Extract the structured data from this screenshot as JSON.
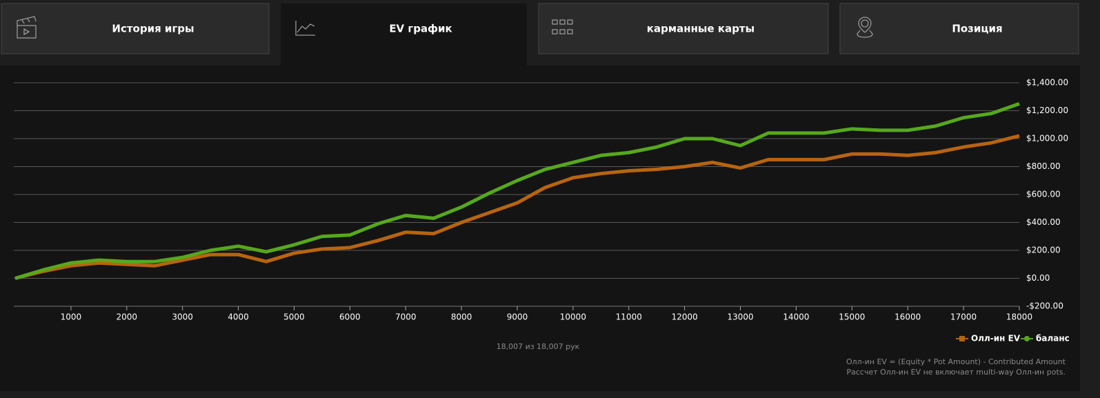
{
  "tabs": [
    {
      "label": "История игры"
    },
    {
      "label": "EV график"
    },
    {
      "label": "карманные карты"
    },
    {
      "label": "Позиция"
    }
  ],
  "chart_data": {
    "type": "line",
    "x": [
      0,
      500,
      1000,
      1500,
      2000,
      2500,
      3000,
      3500,
      4000,
      4500,
      5000,
      5500,
      6000,
      6500,
      7000,
      7500,
      8000,
      8500,
      9000,
      9500,
      10000,
      10500,
      11000,
      11500,
      12000,
      12500,
      13000,
      13500,
      14000,
      14500,
      15000,
      15500,
      16000,
      16500,
      17000,
      17500,
      18000
    ],
    "series": [
      {
        "name": "Олл-ин EV",
        "color": "#b8640f",
        "values": [
          0,
          50,
          90,
          110,
          100,
          90,
          130,
          170,
          170,
          120,
          180,
          210,
          220,
          270,
          330,
          320,
          400,
          470,
          540,
          650,
          720,
          750,
          770,
          780,
          800,
          830,
          790,
          850,
          850,
          850,
          890,
          890,
          880,
          900,
          940,
          970,
          1020
        ]
      },
      {
        "name": "баланс",
        "color": "#57a81c",
        "values": [
          0,
          60,
          110,
          130,
          120,
          120,
          150,
          200,
          230,
          190,
          240,
          300,
          310,
          390,
          450,
          430,
          510,
          610,
          700,
          780,
          830,
          880,
          900,
          940,
          1000,
          1000,
          950,
          1040,
          1040,
          1040,
          1070,
          1060,
          1060,
          1090,
          1150,
          1180,
          1250
        ]
      }
    ],
    "xlim": [
      0,
      18000
    ],
    "xticks": [
      1000,
      2000,
      3000,
      4000,
      5000,
      6000,
      7000,
      8000,
      9000,
      10000,
      11000,
      12000,
      13000,
      14000,
      15000,
      16000,
      17000,
      18000
    ],
    "ylim": [
      -200,
      1400
    ],
    "yticks": [
      {
        "value": -200,
        "label": "-$200.00"
      },
      {
        "value": 0,
        "label": "$0.00"
      },
      {
        "value": 200,
        "label": "$200.00"
      },
      {
        "value": 400,
        "label": "$400.00"
      },
      {
        "value": 600,
        "label": "$600.00"
      },
      {
        "value": 800,
        "label": "$800.00"
      },
      {
        "value": 1000,
        "label": "$1,000.00"
      },
      {
        "value": 1200,
        "label": "$1,200.00"
      },
      {
        "value": 1400,
        "label": "$1,400.00"
      }
    ],
    "grid": true,
    "legend": "bottom-right"
  },
  "footer": {
    "count": "18,007 из 18,007 рук",
    "notes": [
      "Олл-ин EV = (Equity * Pot Amount) - Contributed Amount",
      "Рассчет Олл-ин EV не включает multi-way Олл-ин pots."
    ]
  }
}
